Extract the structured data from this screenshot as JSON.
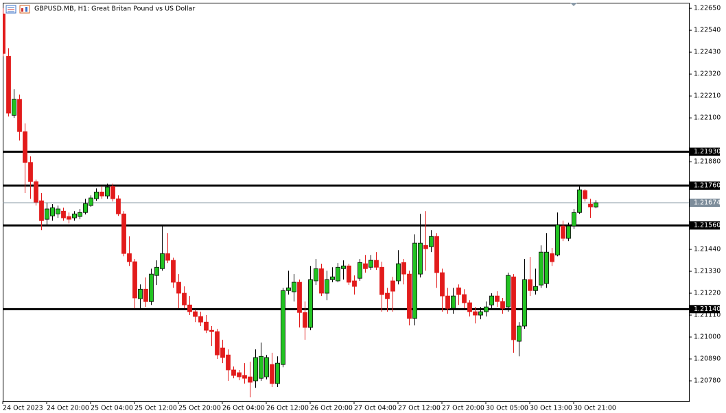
{
  "chart_data": {
    "type": "candlestick",
    "title": "GBPUSD.MB, H1:  Great Britan Pound vs US Dollar",
    "categories": [
      "24 Oct 2023",
      null,
      null,
      null,
      null,
      null,
      null,
      null,
      "24 Oct 20:00",
      null,
      null,
      null,
      null,
      null,
      null,
      null,
      "25 Oct 04:00",
      null,
      null,
      null,
      null,
      null,
      null,
      null,
      "25 Oct 12:00",
      null,
      null,
      null,
      null,
      null,
      null,
      null,
      "25 Oct 20:00",
      null,
      null,
      null,
      null,
      null,
      null,
      null,
      "26 Oct 04:00",
      null,
      null,
      null,
      null,
      null,
      null,
      null,
      "26 Oct 12:00",
      null,
      null,
      null,
      null,
      null,
      null,
      null,
      "26 Oct 20:00",
      null,
      null,
      null,
      null,
      null,
      null,
      null,
      "27 Oct 04:00",
      null,
      null,
      null,
      null,
      null,
      null,
      null,
      "27 Oct 12:00",
      null,
      null,
      null,
      null,
      null,
      null,
      null,
      "27 Oct 20:00",
      null,
      null,
      null,
      null,
      null,
      null,
      null,
      "30 Oct 05:00",
      null,
      null,
      null,
      null,
      null,
      null,
      null,
      "30 Oct 13:00",
      null,
      null,
      null,
      null,
      null,
      null,
      null,
      "30 Oct 21:00",
      null,
      null,
      null,
      null
    ],
    "open": [
      1.22622,
      1.22409,
      1.22113,
      1.22193,
      1.22031,
      1.21876,
      1.2178,
      1.21684,
      1.21591,
      1.21608,
      1.21618,
      1.21632,
      1.21605,
      1.21598,
      1.21605,
      1.21625,
      1.2166,
      1.21694,
      1.21728,
      1.21708,
      1.21756,
      1.21694,
      1.21618,
      1.21419,
      1.21378,
      1.21192,
      1.2124,
      1.21178,
      1.21309,
      1.21343,
      1.21419,
      1.21385,
      1.21275,
      1.2122,
      1.21161,
      1.21127,
      1.21103,
      1.21075,
      1.21034,
      1.21027,
      1.20945,
      1.2091,
      1.20835,
      1.20821,
      1.20807,
      1.208,
      1.2078,
      1.20793,
      1.208,
      1.20862,
      1.20766,
      1.20862,
      1.21233,
      1.21227,
      1.21275,
      1.21123,
      1.21048,
      1.21282,
      1.21343,
      1.2122,
      1.21288,
      1.21282,
      1.21343,
      1.21357,
      1.21282,
      1.21295,
      1.21368,
      1.2135,
      1.21385,
      1.2135,
      1.2122,
      1.21282,
      1.21282,
      1.21374,
      1.21316,
      1.21093,
      1.21316,
      1.2146,
      1.21453,
      1.21505,
      1.21323,
      1.21206,
      1.21144,
      1.21247,
      1.21213,
      1.21172,
      1.21127,
      1.2111,
      1.21127,
      1.21161,
      1.21206,
      1.21178,
      1.21151,
      1.21302,
      1.20979,
      1.21055,
      1.21288,
      1.21233,
      1.21261,
      1.21268,
      1.21419,
      1.21412,
      1.21557,
      1.21495,
      1.21557,
      1.21625,
      1.21735,
      1.21667,
      1.21653
    ],
    "high": [
      1.2265,
      1.2245,
      1.22244,
      1.22217,
      1.22072,
      1.21907,
      1.2179,
      1.21722,
      1.21673,
      1.21667,
      1.2166,
      1.21649,
      1.21625,
      1.21632,
      1.21643,
      1.21694,
      1.21711,
      1.21746,
      1.21756,
      1.2177,
      1.2177,
      1.21711,
      1.21632,
      1.21505,
      1.21392,
      1.21264,
      1.21299,
      1.21343,
      1.21385,
      1.21563,
      1.21522,
      1.21398,
      1.21316,
      1.21254,
      1.21206,
      1.21137,
      1.21127,
      1.2111,
      1.21055,
      1.21041,
      1.20986,
      1.20938,
      1.20852,
      1.20835,
      1.20869,
      1.20876,
      1.20938,
      1.20972,
      1.2091,
      1.20921,
      1.20903,
      1.21247,
      1.21333,
      1.21316,
      1.21288,
      1.21178,
      1.21357,
      1.21392,
      1.21368,
      1.21333,
      1.2135,
      1.21371,
      1.21385,
      1.21368,
      1.21309,
      1.21392,
      1.21412,
      1.21412,
      1.21426,
      1.21378,
      1.21247,
      1.21302,
      1.21436,
      1.21392,
      1.21333,
      1.21515,
      1.21618,
      1.21632,
      1.21536,
      1.21522,
      1.21343,
      1.21247,
      1.21247,
      1.21264,
      1.2124,
      1.21185,
      1.21151,
      1.21151,
      1.21178,
      1.2122,
      1.2123,
      1.21196,
      1.21323,
      1.21316,
      1.21075,
      1.21392,
      1.21402,
      1.21343,
      1.2146,
      1.21522,
      1.21447,
      1.21625,
      1.21584,
      1.21574,
      1.21643,
      1.21756,
      1.21742,
      1.21694,
      1.21687
    ],
    "low": [
      1.22409,
      1.22107,
      1.221,
      1.21986,
      1.21722,
      1.21694,
      1.2166,
      1.21536,
      1.21557,
      1.21584,
      1.21598,
      1.21584,
      1.2157,
      1.21584,
      1.21591,
      1.21615,
      1.21653,
      1.21684,
      1.21694,
      1.21694,
      1.2168,
      1.21608,
      1.21405,
      1.21357,
      1.21144,
      1.21144,
      1.21151,
      1.21161,
      1.21261,
      1.21333,
      1.21371,
      1.21247,
      1.21144,
      1.21144,
      1.2111,
      1.21075,
      1.21055,
      1.2102,
      1.20955,
      1.2089,
      1.20869,
      1.2078,
      1.20793,
      1.20783,
      1.20766,
      1.20697,
      1.20745,
      1.2078,
      1.20787,
      1.20749,
      1.20749,
      1.20848,
      1.21213,
      1.21178,
      1.21048,
      1.20986,
      1.21034,
      1.21261,
      1.21206,
      1.21185,
      1.21275,
      1.21275,
      1.21288,
      1.21261,
      1.21213,
      1.21282,
      1.21323,
      1.21337,
      1.21337,
      1.21127,
      1.21127,
      1.21127,
      1.21264,
      1.21264,
      1.21058,
      1.21058,
      1.21299,
      1.21333,
      1.21426,
      1.21247,
      1.21127,
      1.21117,
      1.21117,
      1.21161,
      1.21144,
      1.21103,
      1.21068,
      1.21089,
      1.21103,
      1.21137,
      1.21151,
      1.21117,
      1.21127,
      1.20921,
      1.20903,
      1.21041,
      1.21206,
      1.21213,
      1.21247,
      1.21247,
      1.21357,
      1.21405,
      1.21481,
      1.21481,
      1.21543,
      1.21618,
      1.2168,
      1.21598,
      1.21646
    ],
    "close": [
      1.22423,
      1.22124,
      1.22193,
      1.22031,
      1.21876,
      1.2178,
      1.21677,
      1.21584,
      1.21643,
      1.21649,
      1.21643,
      1.21598,
      1.21591,
      1.21618,
      1.21625,
      1.2167,
      1.21698,
      1.21728,
      1.21708,
      1.21753,
      1.21694,
      1.21618,
      1.21419,
      1.21378,
      1.21196,
      1.2124,
      1.21178,
      1.21316,
      1.2135,
      1.21419,
      1.21385,
      1.21275,
      1.2122,
      1.21161,
      1.21127,
      1.21103,
      1.21075,
      1.21034,
      1.21027,
      1.2091,
      1.20897,
      1.20835,
      1.20807,
      1.208,
      1.20793,
      1.20773,
      1.20897,
      1.20903,
      1.20897,
      1.20766,
      1.20869,
      1.21233,
      1.21247,
      1.21275,
      1.21123,
      1.21048,
      1.21288,
      1.21343,
      1.2122,
      1.21288,
      1.21302,
      1.2135,
      1.21357,
      1.21275,
      1.21254,
      1.21374,
      1.21343,
      1.21385,
      1.2135,
      1.21213,
      1.21192,
      1.2123,
      1.21368,
      1.21316,
      1.21093,
      1.21471,
      1.21471,
      1.21443,
      1.21505,
      1.21323,
      1.21206,
      1.21144,
      1.21206,
      1.21213,
      1.21172,
      1.21127,
      1.2111,
      1.21127,
      1.21151,
      1.21206,
      1.21178,
      1.21144,
      1.21309,
      1.20986,
      1.21055,
      1.21288,
      1.21233,
      1.21254,
      1.21426,
      1.21426,
      1.21378,
      1.21563,
      1.21495,
      1.21557,
      1.21625,
      1.21739,
      1.21694,
      1.21653,
      1.21674
    ],
    "up_color": "#22c322",
    "down_color": "#e21b1b",
    "ylim": [
      1.20677,
      1.22678
    ],
    "yticks": [
      {
        "value": 1.2265,
        "label": "1.22650"
      },
      {
        "value": 1.2254,
        "label": "1.22540"
      },
      {
        "value": 1.2243,
        "label": "1.22430"
      },
      {
        "value": 1.2232,
        "label": "1.22320"
      },
      {
        "value": 1.2221,
        "label": "1.22210"
      },
      {
        "value": 1.221,
        "label": "1.22100"
      },
      {
        "value": 1.2188,
        "label": "1.21880"
      },
      {
        "value": 1.2144,
        "label": "1.21440"
      },
      {
        "value": 1.2133,
        "label": "1.21330"
      },
      {
        "value": 1.2122,
        "label": "1.21220"
      },
      {
        "value": 1.2111,
        "label": "1.21110"
      },
      {
        "value": 1.21,
        "label": "1.21000"
      },
      {
        "value": 1.2089,
        "label": "1.20890"
      },
      {
        "value": 1.2078,
        "label": "1.20780"
      }
    ],
    "horizontal_lines": [
      {
        "value": 1.2193,
        "label": "1.21930"
      },
      {
        "value": 1.2176,
        "label": "1.21760"
      },
      {
        "value": 1.2156,
        "label": "1.21560"
      },
      {
        "value": 1.2114,
        "label": "1.21140"
      }
    ],
    "current_price": {
      "value": 1.21674,
      "label": "1.21674"
    }
  }
}
